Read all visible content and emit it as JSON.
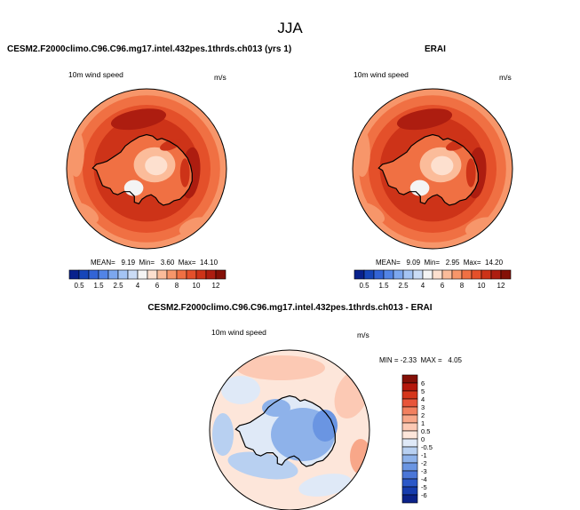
{
  "page_title": "JJA",
  "chart_data": [
    {
      "type": "heatmap",
      "projection": "south-polar-stereographic",
      "title": "CESM2.F2000climo.C96.C96.mg17.intel.432pes.1thrds.ch013 (yrs 1)",
      "variable": "10m wind speed",
      "units": "m/s",
      "stats": {
        "mean_label": "MEAN=",
        "mean": "9.19",
        "min_label": "Min=",
        "min": "3.60",
        "max_label": "Max=",
        "max": "14.10"
      },
      "colorbar": {
        "ticks": [
          "0.5",
          "1.5",
          "2.5",
          "4",
          "6",
          "8",
          "10",
          "12"
        ],
        "levels": [
          0.5,
          1,
          1.5,
          2,
          2.5,
          3,
          4,
          5,
          6,
          7,
          8,
          9,
          10,
          11,
          12
        ],
        "colors": [
          "#08218c",
          "#1646b9",
          "#3264d6",
          "#5284e6",
          "#7ca7ef",
          "#a4c4f4",
          "#cadcf6",
          "#f4f4f4",
          "#fde0cf",
          "#fbbc9a",
          "#f7966a",
          "#f07043",
          "#e4502a",
          "#cd3318",
          "#ad1d10",
          "#841007"
        ]
      }
    },
    {
      "type": "heatmap",
      "projection": "south-polar-stereographic",
      "title": "ERAI",
      "variable": "10m wind speed",
      "units": "m/s",
      "stats": {
        "mean_label": "MEAN=",
        "mean": "9.09",
        "min_label": "Min=",
        "min": "2.95",
        "max_label": "Max=",
        "max": "14.20"
      },
      "colorbar": {
        "ticks": [
          "0.5",
          "1.5",
          "2.5",
          "4",
          "6",
          "8",
          "10",
          "12"
        ],
        "levels": [
          0.5,
          1,
          1.5,
          2,
          2.5,
          3,
          4,
          5,
          6,
          7,
          8,
          9,
          10,
          11,
          12
        ],
        "colors": [
          "#08218c",
          "#1646b9",
          "#3264d6",
          "#5284e6",
          "#7ca7ef",
          "#a4c4f4",
          "#cadcf6",
          "#f4f4f4",
          "#fde0cf",
          "#fbbc9a",
          "#f7966a",
          "#f07043",
          "#e4502a",
          "#cd3318",
          "#ad1d10",
          "#841007"
        ]
      }
    },
    {
      "type": "heatmap",
      "projection": "south-polar-stereographic",
      "title": "CESM2.F2000climo.C96.C96.mg17.intel.432pes.1thrds.ch013 - ERAI",
      "variable": "10m wind speed",
      "units": "m/s",
      "stats": {
        "min_label": "MIN =",
        "min": "-2.33",
        "max_label": "MAX =",
        "max": "4.05"
      },
      "colorbar": {
        "ticks": [
          "6",
          "5",
          "4",
          "3",
          "2",
          "1",
          "0.5",
          "0",
          "-0.5",
          "-1",
          "-2",
          "-3",
          "-4",
          "-5",
          "-6"
        ],
        "colors": [
          "#841007",
          "#b5180c",
          "#d5361b",
          "#e8553a",
          "#f2805f",
          "#f8a789",
          "#fcc9b4",
          "#fde6da",
          "#dfe9f7",
          "#b8d0f1",
          "#8eb2ea",
          "#6a95e2",
          "#4a76d8",
          "#2b58c8",
          "#163cad",
          "#0b2289"
        ]
      }
    }
  ]
}
